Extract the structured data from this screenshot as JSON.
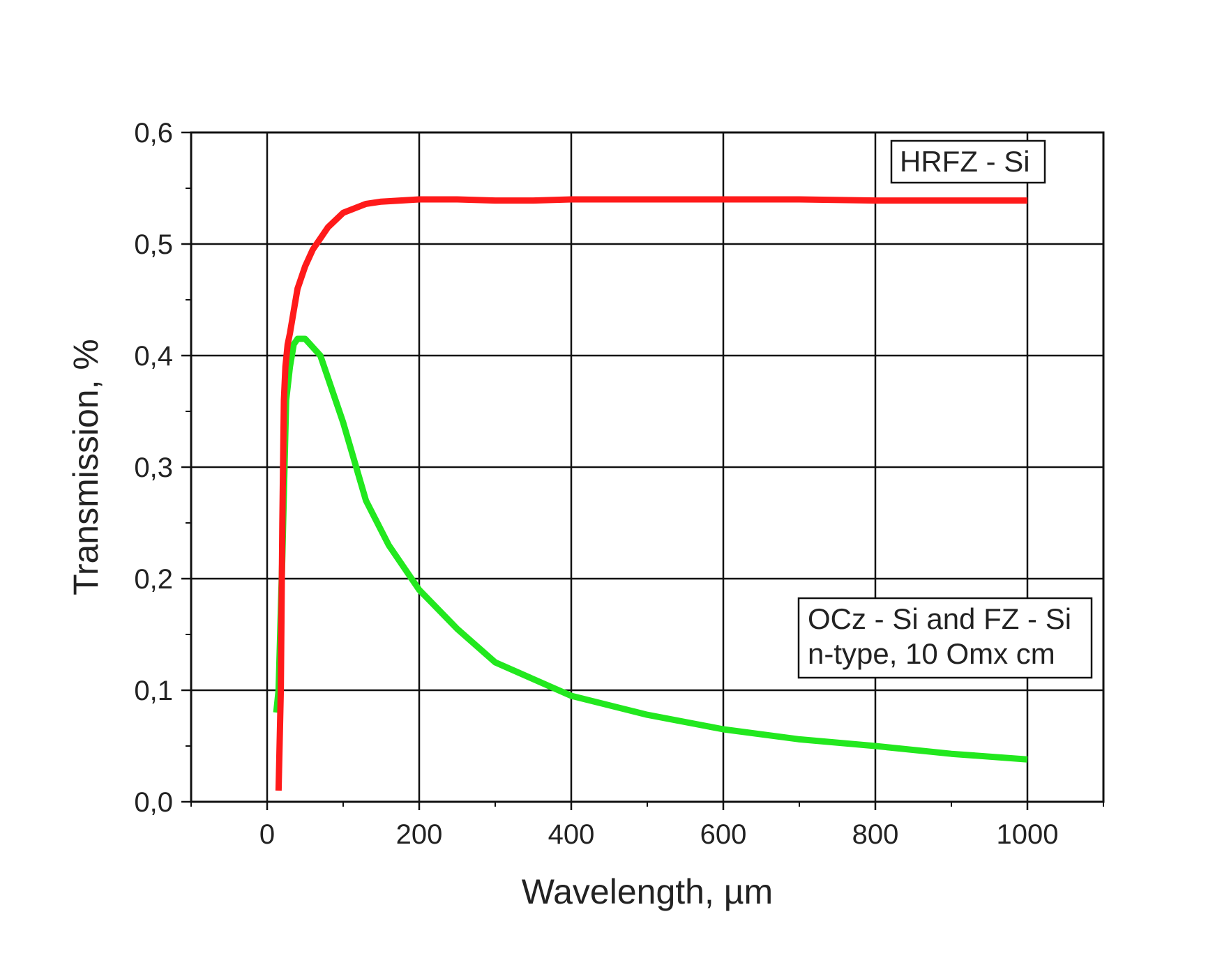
{
  "chart_data": {
    "type": "line",
    "title": "",
    "xlabel": "Wavelength, µm",
    "ylabel": "Transmission, %",
    "xlim": [
      -100,
      1100
    ],
    "ylim": [
      0,
      0.6
    ],
    "x_ticks": [
      0,
      200,
      400,
      600,
      800,
      1000
    ],
    "x_tick_labels": [
      "0",
      "200",
      "400",
      "600",
      "800",
      "1000"
    ],
    "y_ticks": [
      0,
      0.1,
      0.2,
      0.3,
      0.4,
      0.5,
      0.6
    ],
    "y_tick_labels": [
      "0,0",
      "0,1",
      "0,2",
      "0,3",
      "0,4",
      "0,5",
      "0,6"
    ],
    "grid": true,
    "series": [
      {
        "name": "HRFZ - Si",
        "color": "#ff1a1a",
        "x": [
          15,
          18,
          20,
          22,
          24,
          27,
          30,
          35,
          40,
          50,
          60,
          80,
          100,
          130,
          150,
          200,
          250,
          300,
          350,
          400,
          500,
          600,
          700,
          800,
          900,
          1000
        ],
        "y": [
          0.01,
          0.1,
          0.25,
          0.36,
          0.39,
          0.41,
          0.42,
          0.44,
          0.46,
          0.48,
          0.495,
          0.515,
          0.528,
          0.536,
          0.538,
          0.54,
          0.54,
          0.539,
          0.539,
          0.54,
          0.54,
          0.54,
          0.54,
          0.539,
          0.539,
          0.539
        ]
      },
      {
        "name": "OCz - Si and FZ - Si n-type, 10 Omx cm",
        "color": "#22e81e",
        "x": [
          12,
          15,
          20,
          25,
          30,
          35,
          40,
          50,
          70,
          100,
          130,
          160,
          200,
          250,
          300,
          350,
          400,
          500,
          600,
          700,
          800,
          900,
          1000
        ],
        "y": [
          0.08,
          0.1,
          0.22,
          0.36,
          0.39,
          0.41,
          0.415,
          0.415,
          0.4,
          0.34,
          0.27,
          0.23,
          0.19,
          0.155,
          0.125,
          0.11,
          0.095,
          0.078,
          0.065,
          0.056,
          0.05,
          0.043,
          0.038
        ]
      }
    ],
    "legend": [
      {
        "text_lines": [
          "HRFZ - Si"
        ],
        "placement": "top-right"
      },
      {
        "text_lines": [
          "OCz - Si and FZ - Si",
          "n-type, 10 Omx cm"
        ],
        "placement": "right"
      }
    ]
  }
}
